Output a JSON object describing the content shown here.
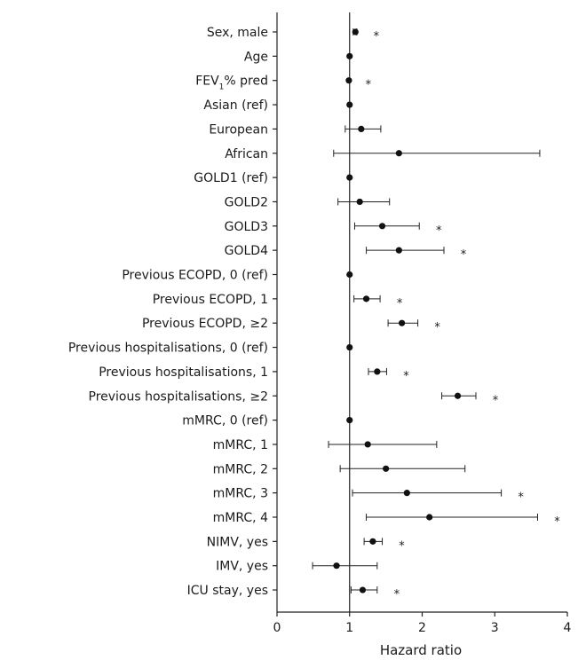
{
  "chart_data": {
    "type": "forest",
    "xlabel": "Hazard ratio",
    "xlim": [
      0,
      4
    ],
    "xticks": [
      "0",
      "1",
      "2",
      "3",
      "4"
    ],
    "reference_line": 1,
    "rows": [
      {
        "label": "Sex, male",
        "hr": 1.08,
        "lo": 1.05,
        "hi": 1.1,
        "sig": "*"
      },
      {
        "label": "Age",
        "hr": 1.0,
        "lo": 1.0,
        "hi": 1.0,
        "sig": ""
      },
      {
        "label": "FEV",
        "sub": "1",
        "label_suffix": "% pred",
        "hr": 0.99,
        "lo": 0.99,
        "hi": 0.99,
        "sig": "*"
      },
      {
        "label": "Asian (ref)",
        "hr": 1.0,
        "lo": 1.0,
        "hi": 1.0,
        "sig": ""
      },
      {
        "label": "European",
        "hr": 1.16,
        "lo": 0.94,
        "hi": 1.43,
        "sig": ""
      },
      {
        "label": "African",
        "hr": 1.68,
        "lo": 0.78,
        "hi": 3.62,
        "sig": ""
      },
      {
        "label": "GOLD1 (ref)",
        "hr": 1.0,
        "lo": 1.0,
        "hi": 1.0,
        "sig": ""
      },
      {
        "label": "GOLD2",
        "hr": 1.14,
        "lo": 0.84,
        "hi": 1.55,
        "sig": ""
      },
      {
        "label": "GOLD3",
        "hr": 1.45,
        "lo": 1.07,
        "hi": 1.96,
        "sig": "*"
      },
      {
        "label": "GOLD4",
        "hr": 1.68,
        "lo": 1.23,
        "hi": 2.3,
        "sig": "*"
      },
      {
        "label": "Previous ECOPD, 0 (ref)",
        "hr": 1.0,
        "lo": 1.0,
        "hi": 1.0,
        "sig": ""
      },
      {
        "label": "Previous ECOPD, 1",
        "hr": 1.23,
        "lo": 1.06,
        "hi": 1.42,
        "sig": "*"
      },
      {
        "label": "Previous ECOPD, ≥2",
        "hr": 1.72,
        "lo": 1.53,
        "hi": 1.94,
        "sig": "*"
      },
      {
        "label": "Previous hospitalisations, 0 (ref)",
        "hr": 1.0,
        "lo": 1.0,
        "hi": 1.0,
        "sig": ""
      },
      {
        "label": "Previous hospitalisations, 1",
        "hr": 1.38,
        "lo": 1.26,
        "hi": 1.51,
        "sig": "*"
      },
      {
        "label": "Previous hospitalisations, ≥2",
        "hr": 2.49,
        "lo": 2.27,
        "hi": 2.74,
        "sig": "*"
      },
      {
        "label": "mMRC, 0 (ref)",
        "hr": 1.0,
        "lo": 1.0,
        "hi": 1.0,
        "sig": ""
      },
      {
        "label": "mMRC, 1",
        "hr": 1.25,
        "lo": 0.71,
        "hi": 2.2,
        "sig": ""
      },
      {
        "label": "mMRC, 2",
        "hr": 1.5,
        "lo": 0.87,
        "hi": 2.59,
        "sig": ""
      },
      {
        "label": "mMRC, 3",
        "hr": 1.79,
        "lo": 1.04,
        "hi": 3.09,
        "sig": "*"
      },
      {
        "label": "mMRC, 4",
        "hr": 2.1,
        "lo": 1.23,
        "hi": 3.59,
        "sig": "*"
      },
      {
        "label": "NIMV, yes",
        "hr": 1.32,
        "lo": 1.2,
        "hi": 1.45,
        "sig": "*"
      },
      {
        "label": "IMV, yes",
        "hr": 0.82,
        "lo": 0.49,
        "hi": 1.38,
        "sig": ""
      },
      {
        "label": "ICU stay, yes",
        "hr": 1.18,
        "lo": 1.02,
        "hi": 1.38,
        "sig": "*"
      }
    ]
  }
}
